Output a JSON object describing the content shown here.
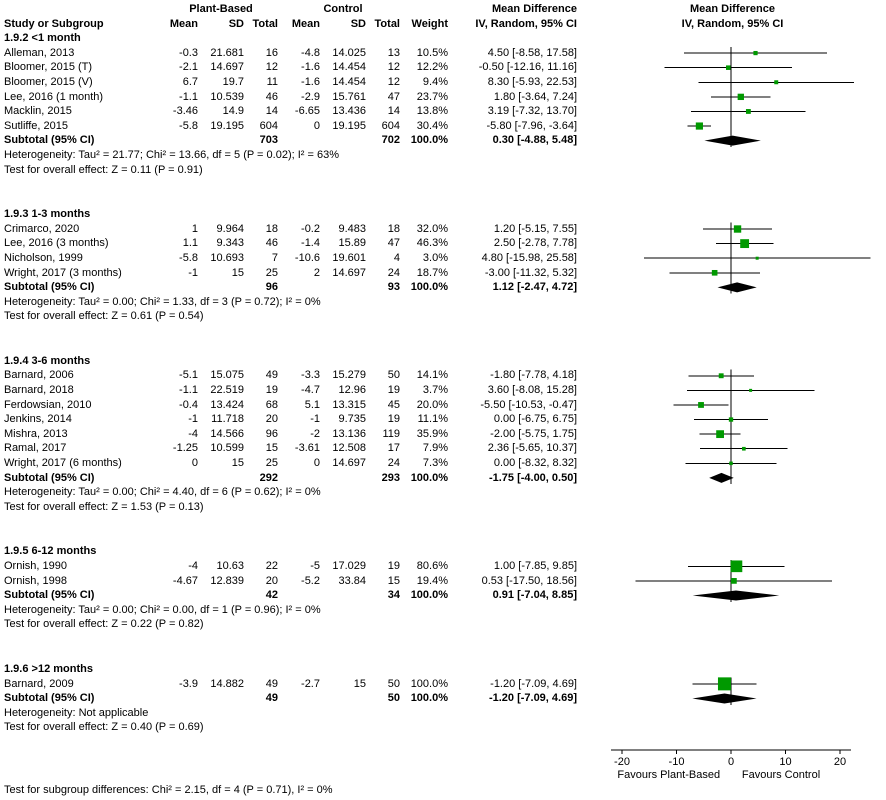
{
  "header": {
    "col_study": "Study or Subgroup",
    "group1": "Plant-Based",
    "group2": "Control",
    "sub_cols": [
      "Mean",
      "SD",
      "Total",
      "Mean",
      "SD",
      "Total",
      "Weight"
    ],
    "md_title": "Mean Difference",
    "md_sub": "IV, Random, 95% CI",
    "plot_title": "Mean Difference",
    "plot_sub": "IV, Random, 95% CI"
  },
  "footer": {
    "subgroup_test": "Test for subgroup differences: Chi² = 2.15, df = 4 (P = 0.71), I² = 0%"
  },
  "colors": {
    "marker_green": "#009900",
    "diamond_black": "#000000",
    "line_black": "#000000"
  },
  "chart_data": {
    "type": "forest",
    "effect_measure": "Mean Difference",
    "method": "IV, Random, 95% CI",
    "axis": {
      "min": -25,
      "max": 25,
      "ticks": [
        -20,
        -10,
        0,
        10,
        20
      ],
      "favours_left": "Favours Plant-Based",
      "favours_right": "Favours Control"
    },
    "subgroups": [
      {
        "label": "1.9.2 <1 month",
        "studies": [
          {
            "name": "Alleman, 2013",
            "mean1": "-0.3",
            "sd1": "21.681",
            "n1": "16",
            "mean2": "-4.8",
            "sd2": "14.025",
            "n2": "13",
            "weight": "10.5%",
            "est": 4.5,
            "lo": -8.58,
            "hi": 17.58,
            "ci": "4.50 [-8.58, 17.58]"
          },
          {
            "name": "Bloomer, 2015 (T)",
            "mean1": "-2.1",
            "sd1": "14.697",
            "n1": "12",
            "mean2": "-1.6",
            "sd2": "14.454",
            "n2": "12",
            "weight": "12.2%",
            "est": -0.5,
            "lo": -12.16,
            "hi": 11.16,
            "ci": "-0.50 [-12.16, 11.16]"
          },
          {
            "name": "Bloomer, 2015 (V)",
            "mean1": "6.7",
            "sd1": "19.7",
            "n1": "11",
            "mean2": "-1.6",
            "sd2": "14.454",
            "n2": "12",
            "weight": "9.4%",
            "est": 8.3,
            "lo": -5.93,
            "hi": 22.53,
            "ci": "8.30 [-5.93, 22.53]"
          },
          {
            "name": "Lee, 2016 (1 month)",
            "mean1": "-1.1",
            "sd1": "10.539",
            "n1": "46",
            "mean2": "-2.9",
            "sd2": "15.761",
            "n2": "47",
            "weight": "23.7%",
            "est": 1.8,
            "lo": -3.64,
            "hi": 7.24,
            "ci": "1.80 [-3.64, 7.24]"
          },
          {
            "name": "Macklin, 2015",
            "mean1": "-3.46",
            "sd1": "14.9",
            "n1": "14",
            "mean2": "-6.65",
            "sd2": "13.436",
            "n2": "14",
            "weight": "13.8%",
            "est": 3.19,
            "lo": -7.32,
            "hi": 13.7,
            "ci": "3.19 [-7.32, 13.70]"
          },
          {
            "name": "Sutliffe, 2015",
            "mean1": "-5.8",
            "sd1": "19.195",
            "n1": "604",
            "mean2": "0",
            "sd2": "19.195",
            "n2": "604",
            "weight": "30.4%",
            "est": -5.8,
            "lo": -7.96,
            "hi": -3.64,
            "ci": "-5.80 [-7.96, -3.64]"
          }
        ],
        "subtotal": {
          "label": "Subtotal (95% CI)",
          "n1": "703",
          "n2": "702",
          "weight": "100.0%",
          "est": 0.3,
          "lo": -4.88,
          "hi": 5.48,
          "ci": "0.30 [-4.88, 5.48]"
        },
        "heterogeneity": "Heterogeneity: Tau² = 21.77; Chi² = 13.66, df = 5 (P = 0.02); I² = 63%",
        "overall_effect": "Test for overall effect: Z = 0.11 (P = 0.91)"
      },
      {
        "label": "1.9.3 1-3 months",
        "studies": [
          {
            "name": "Crimarco, 2020",
            "mean1": "1",
            "sd1": "9.964",
            "n1": "18",
            "mean2": "-0.2",
            "sd2": "9.483",
            "n2": "18",
            "weight": "32.0%",
            "est": 1.2,
            "lo": -5.15,
            "hi": 7.55,
            "ci": "1.20 [-5.15, 7.55]"
          },
          {
            "name": "Lee, 2016 (3 months)",
            "mean1": "1.1",
            "sd1": "9.343",
            "n1": "46",
            "mean2": "-1.4",
            "sd2": "15.89",
            "n2": "47",
            "weight": "46.3%",
            "est": 2.5,
            "lo": -2.78,
            "hi": 7.78,
            "ci": "2.50 [-2.78, 7.78]"
          },
          {
            "name": "Nicholson, 1999",
            "mean1": "-5.8",
            "sd1": "10.693",
            "n1": "7",
            "mean2": "-10.6",
            "sd2": "19.601",
            "n2": "4",
            "weight": "3.0%",
            "est": 4.8,
            "lo": -15.98,
            "hi": 25.58,
            "ci": "4.80 [-15.98, 25.58]"
          },
          {
            "name": "Wright, 2017 (3 months)",
            "mean1": "-1",
            "sd1": "15",
            "n1": "25",
            "mean2": "2",
            "sd2": "14.697",
            "n2": "24",
            "weight": "18.7%",
            "est": -3.0,
            "lo": -11.32,
            "hi": 5.32,
            "ci": "-3.00 [-11.32, 5.32]"
          }
        ],
        "subtotal": {
          "label": "Subtotal (95% CI)",
          "n1": "96",
          "n2": "93",
          "weight": "100.0%",
          "est": 1.12,
          "lo": -2.47,
          "hi": 4.72,
          "ci": "1.12 [-2.47, 4.72]"
        },
        "heterogeneity": "Heterogeneity: Tau² = 0.00; Chi² = 1.33, df = 3 (P = 0.72); I² = 0%",
        "overall_effect": "Test for overall effect: Z = 0.61 (P = 0.54)"
      },
      {
        "label": "1.9.4 3-6 months",
        "studies": [
          {
            "name": "Barnard, 2006",
            "mean1": "-5.1",
            "sd1": "15.075",
            "n1": "49",
            "mean2": "-3.3",
            "sd2": "15.279",
            "n2": "50",
            "weight": "14.1%",
            "est": -1.8,
            "lo": -7.78,
            "hi": 4.18,
            "ci": "-1.80 [-7.78, 4.18]"
          },
          {
            "name": "Barnard, 2018",
            "mean1": "-1.1",
            "sd1": "22.519",
            "n1": "19",
            "mean2": "-4.7",
            "sd2": "12.96",
            "n2": "19",
            "weight": "3.7%",
            "est": 3.6,
            "lo": -8.08,
            "hi": 15.28,
            "ci": "3.60 [-8.08, 15.28]"
          },
          {
            "name": "Ferdowsian, 2010",
            "mean1": "-0.4",
            "sd1": "13.424",
            "n1": "68",
            "mean2": "5.1",
            "sd2": "13.315",
            "n2": "45",
            "weight": "20.0%",
            "est": -5.5,
            "lo": -10.53,
            "hi": -0.47,
            "ci": "-5.50 [-10.53, -0.47]"
          },
          {
            "name": "Jenkins, 2014",
            "mean1": "-1",
            "sd1": "11.718",
            "n1": "20",
            "mean2": "-1",
            "sd2": "9.735",
            "n2": "19",
            "weight": "11.1%",
            "est": 0.0,
            "lo": -6.75,
            "hi": 6.75,
            "ci": "0.00 [-6.75, 6.75]"
          },
          {
            "name": "Mishra, 2013",
            "mean1": "-4",
            "sd1": "14.566",
            "n1": "96",
            "mean2": "-2",
            "sd2": "13.136",
            "n2": "119",
            "weight": "35.9%",
            "est": -2.0,
            "lo": -5.75,
            "hi": 1.75,
            "ci": "-2.00 [-5.75, 1.75]"
          },
          {
            "name": "Ramal, 2017",
            "mean1": "-1.25",
            "sd1": "10.599",
            "n1": "15",
            "mean2": "-3.61",
            "sd2": "12.508",
            "n2": "17",
            "weight": "7.9%",
            "est": 2.36,
            "lo": -5.65,
            "hi": 10.37,
            "ci": "2.36 [-5.65, 10.37]"
          },
          {
            "name": "Wright, 2017 (6 months)",
            "mean1": "0",
            "sd1": "15",
            "n1": "25",
            "mean2": "0",
            "sd2": "14.697",
            "n2": "24",
            "weight": "7.3%",
            "est": 0.0,
            "lo": -8.32,
            "hi": 8.32,
            "ci": "0.00 [-8.32, 8.32]"
          }
        ],
        "subtotal": {
          "label": "Subtotal (95% CI)",
          "n1": "292",
          "n2": "293",
          "weight": "100.0%",
          "est": -1.75,
          "lo": -4.0,
          "hi": 0.5,
          "ci": "-1.75 [-4.00, 0.50]"
        },
        "heterogeneity": "Heterogeneity: Tau² = 0.00; Chi² = 4.40, df = 6 (P = 0.62); I² = 0%",
        "overall_effect": "Test for overall effect: Z = 1.53 (P = 0.13)"
      },
      {
        "label": "1.9.5 6-12 months",
        "studies": [
          {
            "name": "Ornish, 1990",
            "mean1": "-4",
            "sd1": "10.63",
            "n1": "22",
            "mean2": "-5",
            "sd2": "17.029",
            "n2": "19",
            "weight": "80.6%",
            "est": 1.0,
            "lo": -7.85,
            "hi": 9.85,
            "ci": "1.00 [-7.85, 9.85]"
          },
          {
            "name": "Ornish, 1998",
            "mean1": "-4.67",
            "sd1": "12.839",
            "n1": "20",
            "mean2": "-5.2",
            "sd2": "33.84",
            "n2": "15",
            "weight": "19.4%",
            "est": 0.53,
            "lo": -17.5,
            "hi": 18.56,
            "ci": "0.53 [-17.50, 18.56]"
          }
        ],
        "subtotal": {
          "label": "Subtotal (95% CI)",
          "n1": "42",
          "n2": "34",
          "weight": "100.0%",
          "est": 0.91,
          "lo": -7.04,
          "hi": 8.85,
          "ci": "0.91 [-7.04, 8.85]"
        },
        "heterogeneity": "Heterogeneity: Tau² = 0.00; Chi² = 0.00, df = 1 (P = 0.96); I² = 0%",
        "overall_effect": "Test for overall effect: Z = 0.22 (P = 0.82)"
      },
      {
        "label": "1.9.6 >12 months",
        "studies": [
          {
            "name": "Barnard, 2009",
            "mean1": "-3.9",
            "sd1": "14.882",
            "n1": "49",
            "mean2": "-2.7",
            "sd2": "15",
            "n2": "50",
            "weight": "100.0%",
            "est": -1.2,
            "lo": -7.09,
            "hi": 4.69,
            "ci": "-1.20 [-7.09, 4.69]"
          }
        ],
        "subtotal": {
          "label": "Subtotal (95% CI)",
          "n1": "49",
          "n2": "50",
          "weight": "100.0%",
          "est": -1.2,
          "lo": -7.09,
          "hi": 4.69,
          "ci": "-1.20 [-7.09, 4.69]"
        },
        "heterogeneity": "Heterogeneity: Not applicable",
        "overall_effect": "Test for overall effect: Z = 0.40 (P = 0.69)"
      }
    ]
  }
}
